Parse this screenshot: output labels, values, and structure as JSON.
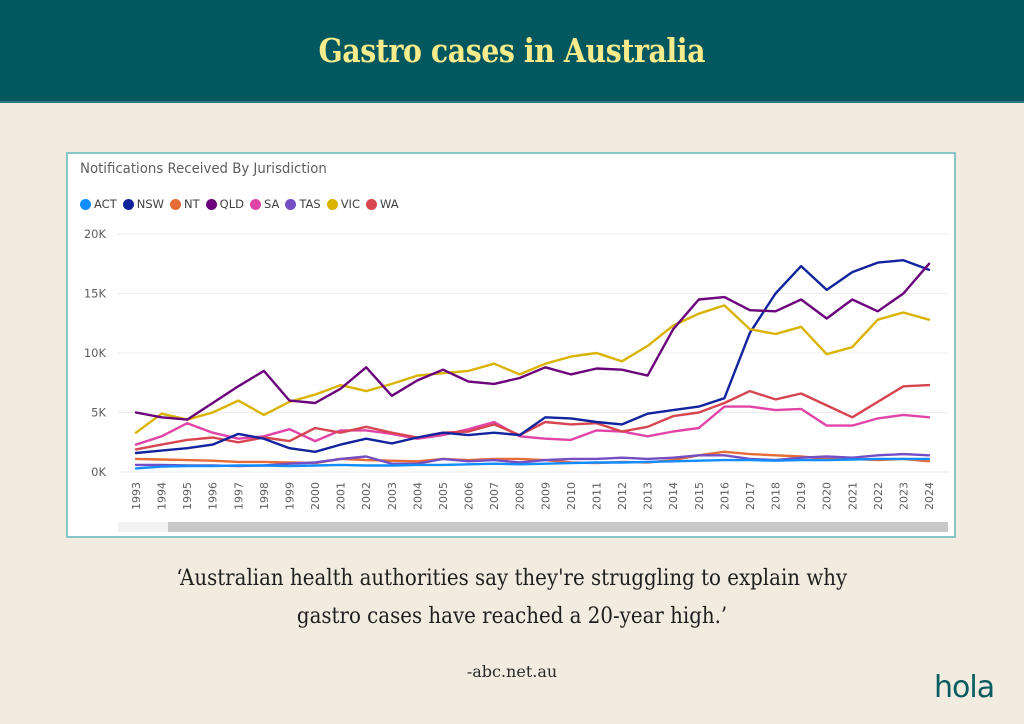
{
  "header": {
    "title": "Gastro cases in Australia"
  },
  "quote": {
    "line1": "‘Australian health authorities say they're struggling to explain why",
    "line2": "gastro cases have reached a 20-year high.’"
  },
  "source": "-abc.net.au",
  "logo": "hola",
  "colors": {
    "header_bg": "#03575e",
    "title_text": "#f6ec8b",
    "page_bg": "#f1ecdf",
    "card_border": "#86c6c6"
  },
  "chart_data": {
    "type": "line",
    "title": "Notifications Received By Jurisdiction",
    "xlabel": "",
    "ylabel": "",
    "ylim": [
      0,
      20000
    ],
    "yticks": [
      0,
      5000,
      10000,
      15000,
      20000
    ],
    "ytick_labels": [
      "0K",
      "5K",
      "10K",
      "15K",
      "20K"
    ],
    "grid": true,
    "legend_position": "top-left",
    "x": [
      "1993",
      "1994",
      "1995",
      "1996",
      "1997",
      "1998",
      "1999",
      "2000",
      "2001",
      "2002",
      "2003",
      "2004",
      "2005",
      "2006",
      "2007",
      "2008",
      "2009",
      "2010",
      "2011",
      "2012",
      "2013",
      "2014",
      "2015",
      "2016",
      "2017",
      "2018",
      "2019",
      "2020",
      "2021",
      "2022",
      "2023",
      "2024"
    ],
    "series": [
      {
        "name": "ACT",
        "color": "#118dff",
        "values": [
          300,
          450,
          500,
          500,
          550,
          550,
          500,
          550,
          600,
          550,
          550,
          600,
          600,
          650,
          700,
          650,
          700,
          750,
          800,
          800,
          850,
          900,
          950,
          1000,
          1000,
          950,
          1000,
          1000,
          1050,
          1100,
          1100,
          1100
        ]
      },
      {
        "name": "NSW",
        "color": "#12239e",
        "values": [
          1600,
          1800,
          2000,
          2300,
          3200,
          2800,
          2000,
          1700,
          2300,
          2800,
          2400,
          2900,
          3300,
          3100,
          3300,
          3100,
          4600,
          4500,
          4200,
          4000,
          4900,
          5200,
          5500,
          6200,
          11700,
          15000,
          17300,
          15300,
          16800,
          17600,
          17800,
          17000
        ]
      },
      {
        "name": "NT",
        "color": "#e66c37",
        "values": [
          1100,
          1050,
          1000,
          950,
          850,
          850,
          800,
          750,
          1100,
          1000,
          950,
          900,
          1100,
          1000,
          1100,
          1100,
          1000,
          800,
          750,
          850,
          800,
          1000,
          1400,
          1700,
          1500,
          1400,
          1300,
          1100,
          1100,
          1000,
          1100,
          900
        ]
      },
      {
        "name": "QLD",
        "color": "#6b007b",
        "values": [
          5000,
          4600,
          4400,
          5800,
          7200,
          8500,
          6000,
          5800,
          7000,
          8800,
          6400,
          7700,
          8600,
          7600,
          7400,
          7900,
          8800,
          8200,
          8700,
          8600,
          8100,
          12000,
          14500,
          14700,
          13600,
          13500,
          14500,
          12900,
          14500,
          13500,
          15000,
          17500
        ]
      },
      {
        "name": "SA",
        "color": "#e044a7",
        "values": [
          2300,
          3000,
          4100,
          3300,
          2800,
          3000,
          3600,
          2600,
          3500,
          3500,
          3200,
          2800,
          3100,
          3600,
          4200,
          3000,
          2800,
          2700,
          3500,
          3400,
          3000,
          3400,
          3700,
          5500,
          5500,
          5200,
          5300,
          3900,
          3900,
          4500,
          4800,
          4600
        ]
      },
      {
        "name": "TAS",
        "color": "#744ec2",
        "values": [
          600,
          600,
          550,
          550,
          500,
          550,
          700,
          800,
          1100,
          1300,
          700,
          700,
          1100,
          900,
          1000,
          800,
          1000,
          1100,
          1100,
          1200,
          1100,
          1200,
          1400,
          1400,
          1100,
          1000,
          1200,
          1300,
          1200,
          1400,
          1500,
          1400
        ]
      },
      {
        "name": "VIC",
        "color": "#d9b300",
        "values": [
          3300,
          4900,
          4400,
          5000,
          6000,
          4800,
          5900,
          6500,
          7300,
          6800,
          7400,
          8100,
          8300,
          8500,
          9100,
          8200,
          9100,
          9700,
          10000,
          9300,
          10600,
          12300,
          13300,
          14000,
          12000,
          11600,
          12200,
          9900,
          10500,
          12800,
          13400,
          12800
        ]
      },
      {
        "name": "WA",
        "color": "#d64550",
        "values": [
          1900,
          2300,
          2700,
          2900,
          2500,
          2900,
          2600,
          3700,
          3300,
          3800,
          3300,
          2900,
          3300,
          3400,
          4000,
          3100,
          4200,
          4000,
          4100,
          3400,
          3800,
          4700,
          5000,
          5800,
          6800,
          6100,
          6600,
          5600,
          4600,
          5900,
          7200,
          7300
        ]
      }
    ]
  }
}
